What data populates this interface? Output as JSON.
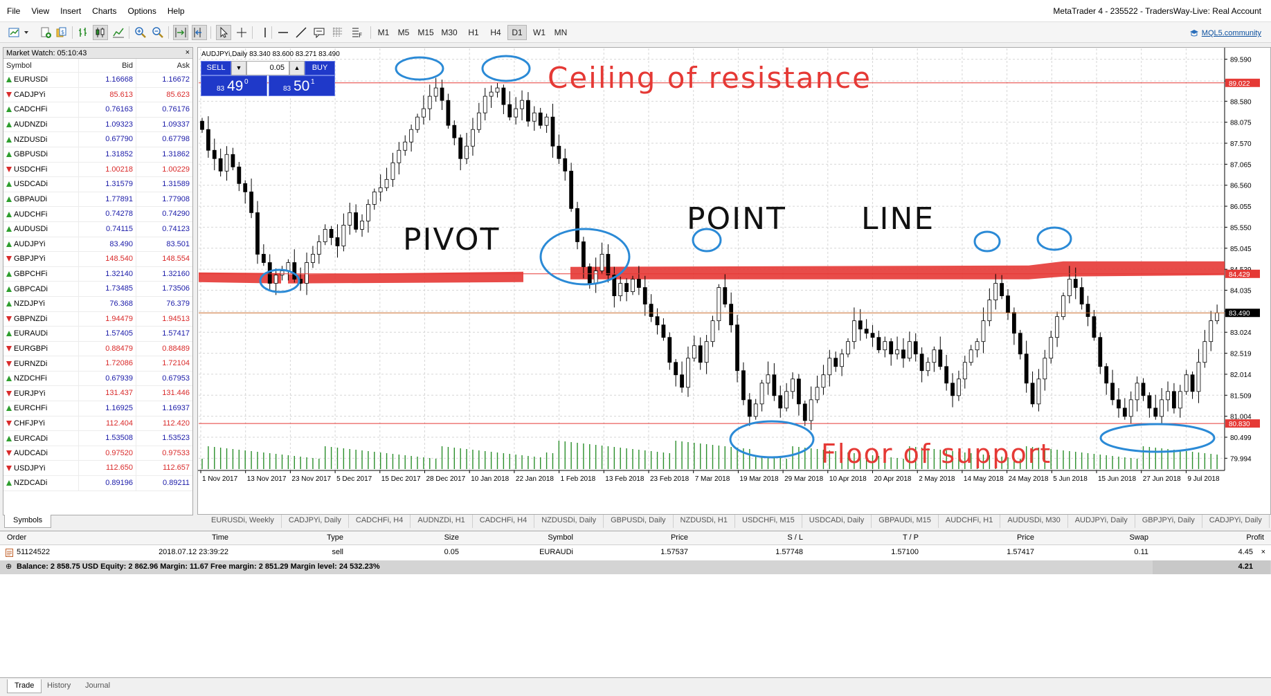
{
  "menu": [
    "File",
    "View",
    "Insert",
    "Charts",
    "Options",
    "Help"
  ],
  "window_title": "MetaTrader 4 - 235522 - TradersWay-Live: Real Account",
  "toolbar": {
    "timeframes": [
      "M1",
      "M5",
      "M15",
      "M30",
      "H1",
      "H4",
      "D1",
      "W1",
      "MN"
    ],
    "active_timeframe": "D1",
    "mql5_link": "MQL5.community"
  },
  "market_watch": {
    "title": "Market Watch: 05:10:43",
    "headers": {
      "symbol": "Symbol",
      "bid": "Bid",
      "ask": "Ask"
    },
    "rows": [
      {
        "s": "EURUSDi",
        "bid": "1.16668",
        "ask": "1.16672",
        "dir": "up",
        "color": "#1a1aa8"
      },
      {
        "s": "CADJPYi",
        "bid": "85.613",
        "ask": "85.623",
        "dir": "down",
        "color": "#d92a2a"
      },
      {
        "s": "CADCHFi",
        "bid": "0.76163",
        "ask": "0.76176",
        "dir": "up",
        "color": "#1a1aa8"
      },
      {
        "s": "AUDNZDi",
        "bid": "1.09323",
        "ask": "1.09337",
        "dir": "up",
        "color": "#1a1aa8"
      },
      {
        "s": "NZDUSDi",
        "bid": "0.67790",
        "ask": "0.67798",
        "dir": "up",
        "color": "#1a1aa8"
      },
      {
        "s": "GBPUSDi",
        "bid": "1.31852",
        "ask": "1.31862",
        "dir": "up",
        "color": "#1a1aa8"
      },
      {
        "s": "USDCHFi",
        "bid": "1.00218",
        "ask": "1.00229",
        "dir": "down",
        "color": "#d92a2a"
      },
      {
        "s": "USDCADi",
        "bid": "1.31579",
        "ask": "1.31589",
        "dir": "up",
        "color": "#1a1aa8"
      },
      {
        "s": "GBPAUDi",
        "bid": "1.77891",
        "ask": "1.77908",
        "dir": "up",
        "color": "#1a1aa8"
      },
      {
        "s": "AUDCHFi",
        "bid": "0.74278",
        "ask": "0.74290",
        "dir": "up",
        "color": "#1a1aa8"
      },
      {
        "s": "AUDUSDi",
        "bid": "0.74115",
        "ask": "0.74123",
        "dir": "up",
        "color": "#1a1aa8"
      },
      {
        "s": "AUDJPYi",
        "bid": "83.490",
        "ask": "83.501",
        "dir": "up",
        "color": "#1a1aa8"
      },
      {
        "s": "GBPJPYi",
        "bid": "148.540",
        "ask": "148.554",
        "dir": "down",
        "color": "#d92a2a"
      },
      {
        "s": "GBPCHFi",
        "bid": "1.32140",
        "ask": "1.32160",
        "dir": "up",
        "color": "#1a1aa8"
      },
      {
        "s": "GBPCADi",
        "bid": "1.73485",
        "ask": "1.73506",
        "dir": "up",
        "color": "#1a1aa8"
      },
      {
        "s": "NZDJPYi",
        "bid": "76.368",
        "ask": "76.379",
        "dir": "up",
        "color": "#1a1aa8"
      },
      {
        "s": "GBPNZDi",
        "bid": "1.94479",
        "ask": "1.94513",
        "dir": "down",
        "color": "#d92a2a"
      },
      {
        "s": "EURAUDi",
        "bid": "1.57405",
        "ask": "1.57417",
        "dir": "up",
        "color": "#1a1aa8"
      },
      {
        "s": "EURGBPi",
        "bid": "0.88479",
        "ask": "0.88489",
        "dir": "down",
        "color": "#d92a2a"
      },
      {
        "s": "EURNZDi",
        "bid": "1.72086",
        "ask": "1.72104",
        "dir": "down",
        "color": "#d92a2a"
      },
      {
        "s": "NZDCHFi",
        "bid": "0.67939",
        "ask": "0.67953",
        "dir": "up",
        "color": "#1a1aa8"
      },
      {
        "s": "EURJPYi",
        "bid": "131.437",
        "ask": "131.446",
        "dir": "down",
        "color": "#d92a2a"
      },
      {
        "s": "EURCHFi",
        "bid": "1.16925",
        "ask": "1.16937",
        "dir": "up",
        "color": "#1a1aa8"
      },
      {
        "s": "CHFJPYi",
        "bid": "112.404",
        "ask": "112.420",
        "dir": "down",
        "color": "#d92a2a"
      },
      {
        "s": "EURCADi",
        "bid": "1.53508",
        "ask": "1.53523",
        "dir": "up",
        "color": "#1a1aa8"
      },
      {
        "s": "AUDCADi",
        "bid": "0.97520",
        "ask": "0.97533",
        "dir": "down",
        "color": "#d92a2a"
      },
      {
        "s": "USDJPYi",
        "bid": "112.650",
        "ask": "112.657",
        "dir": "down",
        "color": "#d92a2a"
      },
      {
        "s": "NZDCADi",
        "bid": "0.89196",
        "ask": "0.89211",
        "dir": "up",
        "color": "#1a1aa8"
      }
    ],
    "tab": "Symbols"
  },
  "chart": {
    "header": "AUDJPYi,Daily  83.340 83.600 83.271 83.490",
    "trade_panel": {
      "sell_label": "SELL",
      "buy_label": "BUY",
      "lot": "0.05",
      "sell_price_small": "83",
      "sell_price_big": "49",
      "sell_price_sup": "0",
      "buy_price_small": "83",
      "buy_price_big": "50",
      "buy_price_sup": "1"
    },
    "annotations": {
      "ceiling": "Ceiling of resistance",
      "pivot": "PIVOT",
      "point": "POINT",
      "line": "LINE",
      "floor": "Floor of support"
    },
    "tabs": [
      "EURUSDi, Weekly",
      "CADJPYi, Daily",
      "CADCHFi, H4",
      "AUDNZDi, H1",
      "CADCHFi, H4",
      "NZDUSDi, Daily",
      "GBPUSDi, Daily",
      "NZDUSDi, H1",
      "USDCHFi, M15",
      "USDCADi, Daily",
      "GBPAUDi, M15",
      "AUDCHFi, H1",
      "AUDUSDi, M30",
      "AUDJPYi, Daily",
      "GBPJPYi, Daily",
      "CADJPYi, Daily"
    ]
  },
  "chart_data": {
    "type": "candlestick",
    "symbol": "AUDJPYi",
    "timeframe": "Daily",
    "y_ticks": [
      "89.590",
      "89.065",
      "88.580",
      "88.075",
      "87.570",
      "87.065",
      "86.560",
      "86.055",
      "85.550",
      "85.045",
      "84.539",
      "84.035",
      "83.530",
      "83.024",
      "82.519",
      "82.014",
      "81.509",
      "81.004",
      "80.499",
      "79.994"
    ],
    "x_ticks": [
      "1 Nov 2017",
      "13 Nov 2017",
      "23 Nov 2017",
      "5 Dec 2017",
      "15 Dec 2017",
      "28 Dec 2017",
      "10 Jan 2018",
      "22 Jan 2018",
      "1 Feb 2018",
      "13 Feb 2018",
      "23 Feb 2018",
      "7 Mar 2018",
      "19 Mar 2018",
      "29 Mar 2018",
      "10 Apr 2018",
      "20 Apr 2018",
      "2 May 2018",
      "14 May 2018",
      "24 May 2018",
      "5 Jun 2018",
      "15 Jun 2018",
      "27 Jun 2018",
      "9 Jul 2018"
    ],
    "ylim": [
      79.7,
      89.85
    ],
    "levels": [
      {
        "value": 89.022,
        "label": "89.022",
        "color": "#e53935"
      },
      {
        "value": 84.429,
        "label": "84.429",
        "color": "#e53935"
      },
      {
        "value": 83.49,
        "label": "83.490",
        "color": "#000000"
      },
      {
        "value": 80.83,
        "label": "80.830",
        "color": "#e53935"
      }
    ],
    "closes": [
      87.9,
      87.4,
      87.2,
      86.9,
      87.3,
      87.0,
      86.6,
      86.4,
      85.9,
      84.9,
      84.7,
      84.2,
      84.4,
      84.5,
      84.7,
      84.3,
      84.2,
      84.7,
      84.9,
      85.2,
      85.5,
      85.3,
      85.1,
      85.6,
      85.9,
      85.5,
      85.7,
      86.1,
      86.4,
      86.5,
      86.7,
      87.1,
      87.4,
      87.6,
      87.9,
      88.2,
      88.4,
      88.7,
      88.9,
      88.6,
      88.0,
      87.7,
      87.2,
      87.5,
      87.9,
      88.3,
      88.7,
      88.8,
      88.9,
      88.5,
      88.2,
      88.4,
      88.6,
      88.1,
      88.3,
      88.0,
      88.2,
      87.5,
      87.2,
      86.9,
      86.0,
      85.2,
      84.6,
      84.2,
      84.5,
      84.9,
      84.4,
      83.9,
      84.2,
      84.0,
      84.3,
      84.1,
      83.7,
      83.4,
      83.2,
      82.9,
      82.3,
      82.0,
      81.7,
      82.4,
      82.7,
      82.3,
      82.8,
      83.3,
      84.1,
      83.7,
      83.2,
      82.1,
      81.4,
      81.0,
      81.3,
      81.8,
      82.0,
      81.5,
      81.2,
      81.6,
      81.9,
      81.3,
      80.9,
      81.4,
      81.7,
      82.0,
      82.4,
      82.2,
      82.5,
      82.8,
      83.3,
      83.1,
      83.0,
      82.9,
      82.6,
      82.8,
      82.5,
      82.6,
      82.4,
      82.8,
      82.5,
      82.1,
      82.3,
      82.6,
      82.2,
      81.8,
      81.5,
      81.9,
      82.3,
      82.6,
      82.8,
      83.3,
      83.8,
      84.2,
      83.9,
      83.5,
      83.0,
      82.5,
      81.8,
      81.3,
      81.9,
      82.4,
      82.9,
      83.4,
      83.9,
      84.3,
      84.1,
      83.7,
      83.4,
      82.9,
      82.2,
      81.8,
      81.4,
      81.2,
      81.0,
      81.4,
      81.8,
      81.5,
      81.2,
      81.0,
      81.4,
      81.6,
      81.2,
      81.6,
      82.0,
      81.6,
      82.3,
      82.8,
      83.3,
      83.49
    ]
  },
  "terminal": {
    "headers": [
      "Order",
      "Time",
      "Type",
      "Size",
      "Symbol",
      "Price",
      "S / L",
      "T / P",
      "Price",
      "Swap",
      "Profit"
    ],
    "order": {
      "order": "51124522",
      "time": "2018.07.12 23:39:22",
      "type": "sell",
      "size": "0.05",
      "symbol": "EURAUDi",
      "price": "1.57537",
      "sl": "1.57748",
      "tp": "1.57100",
      "cur_price": "1.57417",
      "swap": "0.11",
      "profit": "4.45"
    },
    "balance": "Balance: 2 858.75 USD  Equity: 2 862.96  Margin: 11.67  Free margin: 2 851.29  Margin level: 24 532.23%",
    "balance_profit": "4.21",
    "tabs": [
      "Trade",
      "History",
      "Journal"
    ]
  }
}
